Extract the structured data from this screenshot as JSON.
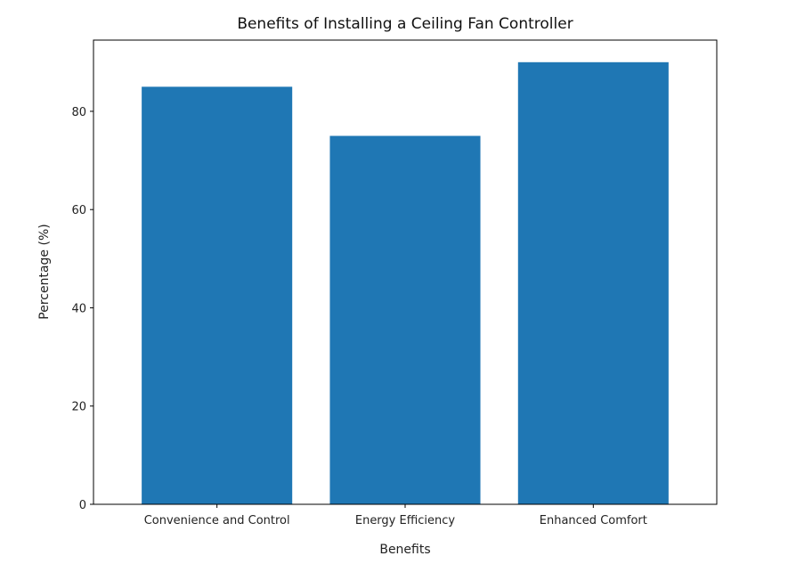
{
  "chart_data": {
    "type": "bar",
    "title": "Benefits of Installing a Ceiling Fan Controller",
    "xlabel": "Benefits",
    "ylabel": "Percentage (%)",
    "categories": [
      "Convenience and Control",
      "Energy Efficiency",
      "Enhanced Comfort"
    ],
    "values": [
      85,
      75,
      90
    ],
    "ylim": [
      0,
      94.5
    ],
    "yticks": [
      0,
      20,
      40,
      60,
      80
    ],
    "bar_color": "#1f77b4",
    "grid": false
  }
}
